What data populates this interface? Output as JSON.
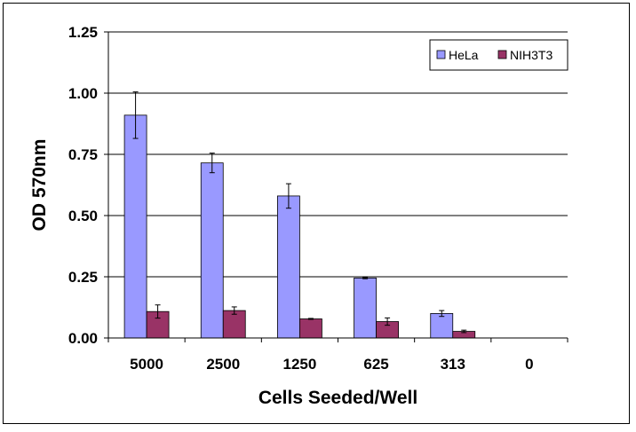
{
  "chart_data": {
    "type": "bar",
    "title": "",
    "xlabel": "Cells Seeded/Well",
    "ylabel": "OD 570nm",
    "ylim": [
      0,
      1.25
    ],
    "yticks": [
      "0.00",
      "0.25",
      "0.50",
      "0.75",
      "1.00",
      "1.25"
    ],
    "grid": "horizontal",
    "legend_position": "top-right",
    "categories": [
      "5000",
      "2500",
      "1250",
      "625",
      "313",
      "0"
    ],
    "series": [
      {
        "name": "HeLa",
        "color": "#9999ff",
        "values": [
          0.91,
          0.715,
          0.58,
          0.245,
          0.1,
          0.0
        ],
        "errors": [
          0.095,
          0.04,
          0.05,
          0.003,
          0.012,
          0.0
        ]
      },
      {
        "name": "NIH3T3",
        "color": "#993366",
        "values": [
          0.108,
          0.112,
          0.078,
          0.067,
          0.027,
          0.0
        ],
        "errors": [
          0.027,
          0.015,
          0.002,
          0.015,
          0.005,
          0.0
        ]
      }
    ]
  }
}
